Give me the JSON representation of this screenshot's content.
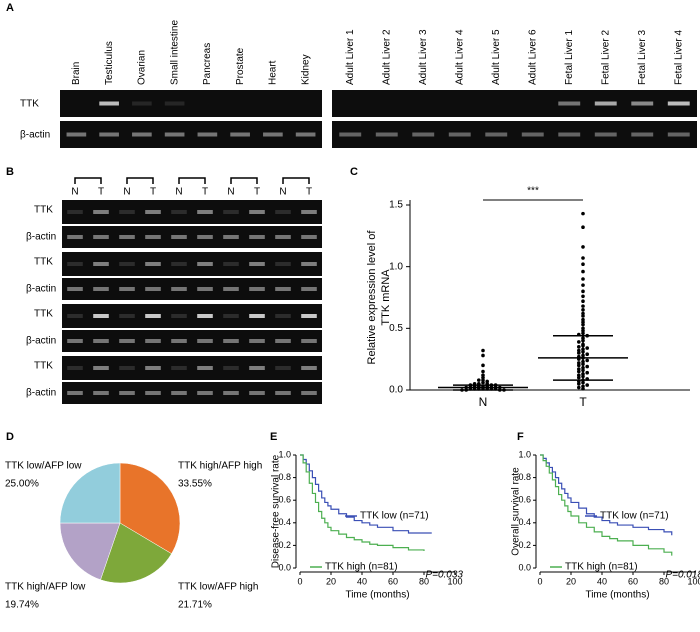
{
  "panels": [
    "A",
    "B",
    "C",
    "D",
    "E",
    "F"
  ],
  "gels": {
    "tissue_lanes": [
      "Brain",
      "Testiculus",
      "Ovarian",
      "Small intestine",
      "Pancreas",
      "Prostate",
      "Heart",
      "Kidney"
    ],
    "liver_lanes": [
      "Adult Liver 1",
      "Adult Liver 2",
      "Adult Liver 3",
      "Adult Liver 4",
      "Adult Liver 5",
      "Adult Liver 6",
      "Fetal Liver 1",
      "Fetal Liver 2",
      "Fetal Liver 3",
      "Fetal Liver 4"
    ],
    "row_labels": [
      "TTK",
      "β-actin"
    ],
    "pair_labels": [
      "N",
      "T"
    ]
  },
  "chart_data": [
    {
      "type": "strip",
      "y_label_lines": [
        "Relative expression level of",
        "TTK mRNA"
      ],
      "annotation": "***",
      "color": "#000000",
      "ylim": [
        0,
        1.5
      ],
      "yticks": [
        {
          "value": 0,
          "label": "0.0"
        },
        0.5,
        {
          "value": 1,
          "label": "1.0"
        },
        1.5
      ],
      "categories": [
        "N",
        "T"
      ],
      "groups": [
        {
          "values": [
            0.32,
            0.28,
            0.2,
            0.15,
            0.12,
            0.1,
            0.08,
            0.08,
            0.07,
            0.06,
            0.05,
            0.05,
            0.05,
            0.04,
            0.04,
            0.04,
            0.03,
            0.03,
            0.03,
            0.03,
            0.02,
            0.02,
            0.02,
            0.02,
            0.02,
            0.01,
            0.01,
            0.01,
            0.01,
            0.01,
            0.01,
            0.01,
            0,
            0,
            0,
            0
          ],
          "mean": 0.02,
          "sd": 0.02
        },
        {
          "values": [
            1.43,
            1.32,
            1.16,
            1.07,
            1.02,
            0.96,
            0.9,
            0.85,
            0.8,
            0.76,
            0.72,
            0.68,
            0.65,
            0.62,
            0.6,
            0.57,
            0.55,
            0.53,
            0.5,
            0.48,
            0.46,
            0.45,
            0.44,
            0.42,
            0.4,
            0.39,
            0.37,
            0.36,
            0.35,
            0.34,
            0.33,
            0.32,
            0.31,
            0.3,
            0.29,
            0.28,
            0.27,
            0.26,
            0.25,
            0.24,
            0.23,
            0.22,
            0.21,
            0.2,
            0.19,
            0.18,
            0.17,
            0.16,
            0.15,
            0.14,
            0.13,
            0.12,
            0.11,
            0.1,
            0.09,
            0.08,
            0.07,
            0.06,
            0.05,
            0.04,
            0.03,
            0.02,
            0.01
          ],
          "mean": 0.26,
          "sd": 0.18
        }
      ]
    },
    {
      "type": "pie",
      "categories": [
        "TTK high/AFP high",
        "TTK low/AFP high",
        "TTK high/AFP low",
        "TTK low/AFP low"
      ],
      "values": [
        33.55,
        21.71,
        19.74,
        25
      ],
      "value_labels": [
        "33.55%",
        "21.71%",
        "19.74%",
        "25.00%"
      ],
      "colors": [
        "#e8742a",
        "#7ea83a",
        "#b3a2c7",
        "#92cddc"
      ]
    },
    {
      "type": "line",
      "y_label": "Disease-free survival rate",
      "x_label": "Time (months)",
      "annotation": "P=0.033",
      "xlim": [
        0,
        100
      ],
      "xticks": [
        0,
        20,
        40,
        60,
        80,
        100
      ],
      "ylim": [
        0,
        1
      ],
      "yticks": [
        {
          "value": 0,
          "label": "0.0"
        },
        0.2,
        0.4,
        0.6,
        0.8,
        {
          "value": 1,
          "label": "1.0"
        }
      ],
      "series": [
        {
          "name": "TTK low (n=71)",
          "color": "#3a4fb5",
          "x": [
            0,
            2,
            4,
            6,
            8,
            10,
            12,
            14,
            16,
            18,
            20,
            25,
            30,
            35,
            40,
            45,
            50,
            60,
            70,
            80,
            85
          ],
          "values": [
            1,
            0.96,
            0.92,
            0.86,
            0.8,
            0.74,
            0.68,
            0.62,
            0.58,
            0.55,
            0.52,
            0.48,
            0.45,
            0.42,
            0.4,
            0.38,
            0.36,
            0.33,
            0.31,
            0.31,
            0.31
          ]
        },
        {
          "name": "TTK high (n=81)",
          "color": "#4caf50",
          "x": [
            0,
            2,
            4,
            6,
            8,
            10,
            12,
            14,
            16,
            18,
            20,
            25,
            30,
            35,
            40,
            45,
            50,
            60,
            70,
            80
          ],
          "values": [
            1,
            0.93,
            0.85,
            0.75,
            0.66,
            0.58,
            0.5,
            0.44,
            0.4,
            0.36,
            0.33,
            0.3,
            0.27,
            0.25,
            0.23,
            0.21,
            0.2,
            0.18,
            0.16,
            0.15
          ]
        }
      ]
    },
    {
      "type": "line",
      "y_label": "Overall survival rate",
      "x_label": "Time (months)",
      "annotation": "P=0.018",
      "xlim": [
        0,
        100
      ],
      "xticks": [
        0,
        20,
        40,
        60,
        80,
        100
      ],
      "ylim": [
        0,
        1
      ],
      "yticks": [
        {
          "value": 0,
          "label": "0.0"
        },
        0.2,
        0.4,
        0.6,
        0.8,
        {
          "value": 1,
          "label": "1.0"
        }
      ],
      "series": [
        {
          "name": "TTK low (n=71)",
          "color": "#3a4fb5",
          "x": [
            0,
            2,
            4,
            6,
            8,
            10,
            12,
            14,
            16,
            18,
            20,
            25,
            30,
            35,
            40,
            45,
            50,
            60,
            70,
            80,
            85
          ],
          "values": [
            1,
            0.97,
            0.93,
            0.89,
            0.85,
            0.8,
            0.75,
            0.7,
            0.66,
            0.62,
            0.58,
            0.53,
            0.48,
            0.45,
            0.42,
            0.4,
            0.38,
            0.36,
            0.34,
            0.32,
            0.29
          ]
        },
        {
          "name": "TTK high (n=81)",
          "color": "#4caf50",
          "x": [
            0,
            2,
            4,
            6,
            8,
            10,
            12,
            14,
            16,
            18,
            20,
            25,
            30,
            35,
            40,
            45,
            50,
            60,
            70,
            80,
            85
          ],
          "values": [
            1,
            0.95,
            0.9,
            0.84,
            0.78,
            0.72,
            0.65,
            0.6,
            0.55,
            0.5,
            0.46,
            0.4,
            0.36,
            0.32,
            0.28,
            0.26,
            0.24,
            0.2,
            0.17,
            0.14,
            0.11
          ]
        }
      ]
    }
  ]
}
